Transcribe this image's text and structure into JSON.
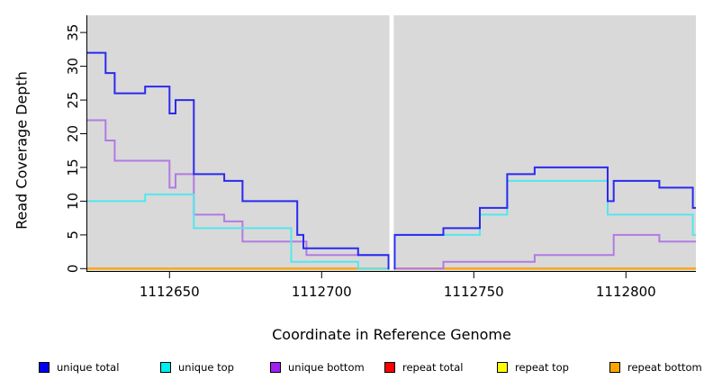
{
  "chart_data": {
    "type": "line",
    "subtype": "step",
    "xlabel": "Coordinate in Reference Genome",
    "ylabel": "Read Coverage Depth",
    "xlim": [
      1112623,
      1112823
    ],
    "ylim": [
      0,
      35
    ],
    "x_ticks": [
      1112650,
      1112700,
      1112750,
      1112800
    ],
    "y_ticks": [
      0,
      5,
      10,
      15,
      20,
      25,
      30,
      35
    ],
    "grid": false,
    "plot_background": "#d9d9d9",
    "background": "#ffffff",
    "legend_position": "bottom",
    "gap": {
      "x_start": 1112722,
      "x_end": 1112724,
      "color": "#ffffff"
    },
    "series": [
      {
        "label": "unique total",
        "color": "#2a2af0",
        "legend_fill": "#0000ee",
        "steps": [
          [
            1112623,
            32
          ],
          [
            1112629,
            29
          ],
          [
            1112632,
            26
          ],
          [
            1112642,
            27
          ],
          [
            1112650,
            23
          ],
          [
            1112652,
            25
          ],
          [
            1112658,
            14
          ],
          [
            1112668,
            13
          ],
          [
            1112674,
            10
          ],
          [
            1112692,
            5
          ],
          [
            1112694,
            3
          ],
          [
            1112712,
            2
          ],
          [
            1112722,
            0
          ],
          [
            1112724,
            5
          ],
          [
            1112740,
            6
          ],
          [
            1112752,
            9
          ],
          [
            1112761,
            14
          ],
          [
            1112770,
            15
          ],
          [
            1112794,
            10
          ],
          [
            1112796,
            13
          ],
          [
            1112811,
            12
          ],
          [
            1112822,
            9
          ]
        ]
      },
      {
        "label": "unique top",
        "color": "#55e6ee",
        "legend_fill": "#00eeee",
        "steps": [
          [
            1112623,
            10
          ],
          [
            1112642,
            11
          ],
          [
            1112658,
            6
          ],
          [
            1112690,
            1
          ],
          [
            1112712,
            0
          ],
          [
            1112724,
            5
          ],
          [
            1112752,
            8
          ],
          [
            1112761,
            13
          ],
          [
            1112794,
            8
          ],
          [
            1112822,
            5
          ]
        ]
      },
      {
        "label": "unique bottom",
        "color": "#b27ae3",
        "legend_fill": "#a020f0",
        "steps": [
          [
            1112623,
            22
          ],
          [
            1112629,
            19
          ],
          [
            1112632,
            16
          ],
          [
            1112650,
            12
          ],
          [
            1112652,
            14
          ],
          [
            1112658,
            8
          ],
          [
            1112668,
            7
          ],
          [
            1112674,
            4
          ],
          [
            1112695,
            2
          ],
          [
            1112722,
            0
          ],
          [
            1112740,
            1
          ],
          [
            1112770,
            2
          ],
          [
            1112796,
            5
          ],
          [
            1112811,
            4
          ]
        ]
      },
      {
        "label": "repeat total",
        "color": "#ee2222",
        "legend_fill": "#ff0000",
        "steps": [
          [
            1112623,
            0
          ]
        ]
      },
      {
        "label": "repeat top",
        "color": "#f0f030",
        "legend_fill": "#ffff00",
        "steps": [
          [
            1112623,
            0
          ]
        ]
      },
      {
        "label": "repeat bottom",
        "color": "#ffa510",
        "legend_fill": "#ffa500",
        "steps": [
          [
            1112623,
            0
          ]
        ]
      }
    ]
  }
}
